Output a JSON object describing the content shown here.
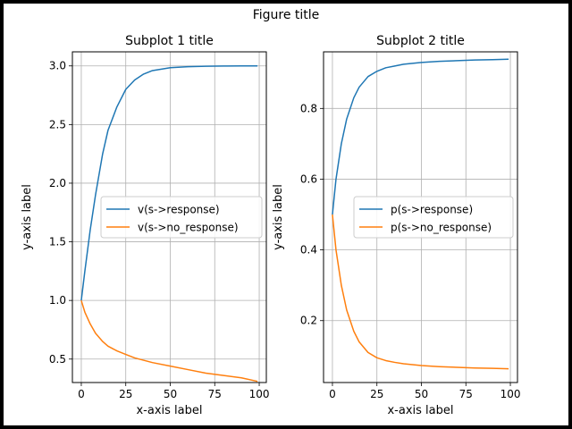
{
  "figure": {
    "title": "Figure title"
  },
  "colors": {
    "series_1": "#1f77b4",
    "series_2": "#ff7f0e",
    "grid": "#b0b0b0",
    "frame": "#000000"
  },
  "chart_data": [
    {
      "type": "line",
      "title": "Subplot 1 title",
      "xlabel": "x-axis label",
      "ylabel": "y-axis label",
      "xlim": [
        -5,
        104
      ],
      "ylim": [
        0.3,
        3.12
      ],
      "xticks": [
        0,
        25,
        50,
        75,
        100
      ],
      "xtick_labels": [
        "0",
        "25",
        "50",
        "75",
        "100"
      ],
      "yticks": [
        0.5,
        1.0,
        1.5,
        2.0,
        2.5,
        3.0
      ],
      "ytick_labels": [
        "0.5",
        "1.0",
        "1.5",
        "2.0",
        "2.5",
        "3.0"
      ],
      "grid": true,
      "legend_position": "center-right",
      "x": [
        0,
        2,
        5,
        8,
        12,
        15,
        20,
        25,
        30,
        35,
        40,
        50,
        60,
        70,
        80,
        90,
        99
      ],
      "series": [
        {
          "name": "v(s->response)",
          "color": "#1f77b4",
          "values": [
            1.0,
            1.25,
            1.6,
            1.9,
            2.25,
            2.45,
            2.65,
            2.8,
            2.88,
            2.93,
            2.96,
            2.985,
            2.993,
            2.997,
            2.999,
            3.0,
            3.0
          ]
        },
        {
          "name": "v(s->no_response)",
          "color": "#ff7f0e",
          "values": [
            1.0,
            0.9,
            0.8,
            0.72,
            0.65,
            0.61,
            0.57,
            0.54,
            0.51,
            0.49,
            0.47,
            0.44,
            0.41,
            0.38,
            0.36,
            0.34,
            0.31
          ]
        }
      ]
    },
    {
      "type": "line",
      "title": "Subplot 2 title",
      "xlabel": "x-axis label",
      "ylabel": "y-axis label",
      "xlim": [
        -5,
        104
      ],
      "ylim": [
        0.025,
        0.96
      ],
      "xticks": [
        0,
        25,
        50,
        75,
        100
      ],
      "xtick_labels": [
        "0",
        "25",
        "50",
        "75",
        "100"
      ],
      "yticks": [
        0.2,
        0.4,
        0.6,
        0.8
      ],
      "ytick_labels": [
        "0.2",
        "0.4",
        "0.6",
        "0.8"
      ],
      "grid": true,
      "legend_position": "center-right",
      "x": [
        0,
        2,
        5,
        8,
        12,
        15,
        20,
        25,
        30,
        35,
        40,
        50,
        60,
        70,
        80,
        90,
        99
      ],
      "series": [
        {
          "name": "p(s->response)",
          "color": "#1f77b4",
          "values": [
            0.5,
            0.6,
            0.7,
            0.77,
            0.83,
            0.86,
            0.89,
            0.905,
            0.915,
            0.92,
            0.925,
            0.93,
            0.933,
            0.935,
            0.937,
            0.938,
            0.939
          ]
        },
        {
          "name": "p(s->no_response)",
          "color": "#ff7f0e",
          "values": [
            0.5,
            0.4,
            0.3,
            0.23,
            0.17,
            0.14,
            0.11,
            0.095,
            0.087,
            0.082,
            0.078,
            0.073,
            0.07,
            0.068,
            0.066,
            0.065,
            0.064
          ]
        }
      ]
    }
  ]
}
